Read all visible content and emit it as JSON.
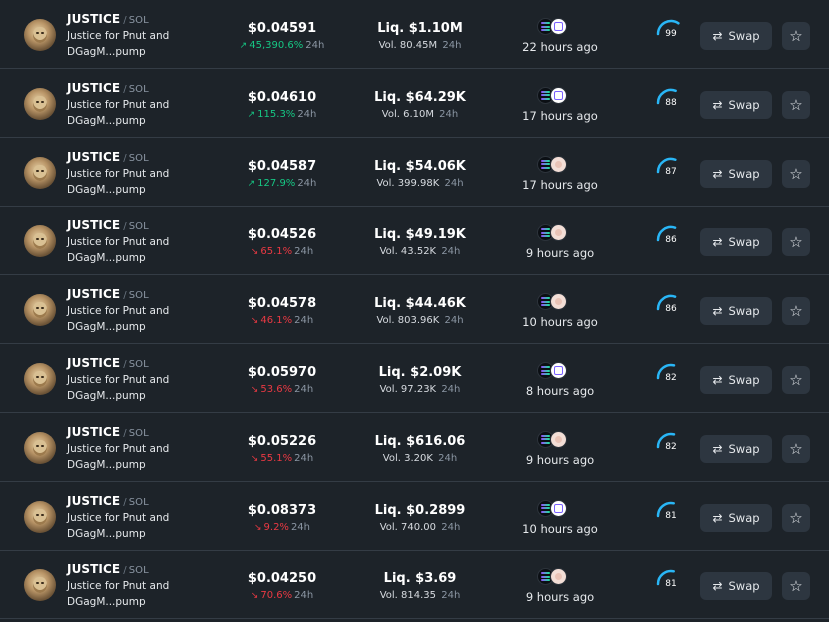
{
  "rows": [
    {
      "name": "JUSTICE",
      "chain": "SOL",
      "desc1": "Justice for Pnut and",
      "desc2": "DGagM...pump",
      "price": "$0.04591",
      "change": "45,390.6%",
      "dir": "up",
      "timeframe": "24h",
      "liq": "Liq. $1.10M",
      "vol": "Vol. 80.45M",
      "age": "22 hours ago",
      "dex": "raydium",
      "score": "99",
      "swap_label": "Swap"
    },
    {
      "name": "JUSTICE",
      "chain": "SOL",
      "desc1": "Justice for Pnut and",
      "desc2": "DGagM...pump",
      "price": "$0.04610",
      "change": "115.3%",
      "dir": "up",
      "timeframe": "24h",
      "liq": "Liq. $64.29K",
      "vol": "Vol. 6.10M",
      "age": "17 hours ago",
      "dex": "raydium",
      "score": "88",
      "swap_label": "Swap"
    },
    {
      "name": "JUSTICE",
      "chain": "SOL",
      "desc1": "Justice for Pnut and",
      "desc2": "DGagM...pump",
      "price": "$0.04587",
      "change": "127.9%",
      "dir": "up",
      "timeframe": "24h",
      "liq": "Liq. $54.06K",
      "vol": "Vol. 399.98K",
      "age": "17 hours ago",
      "dex": "pump",
      "score": "87",
      "swap_label": "Swap"
    },
    {
      "name": "JUSTICE",
      "chain": "SOL",
      "desc1": "Justice for Pnut and",
      "desc2": "DGagM...pump",
      "price": "$0.04526",
      "change": "65.1%",
      "dir": "down",
      "timeframe": "24h",
      "liq": "Liq. $49.19K",
      "vol": "Vol. 43.52K",
      "age": "9 hours ago",
      "dex": "pump",
      "score": "86",
      "swap_label": "Swap"
    },
    {
      "name": "JUSTICE",
      "chain": "SOL",
      "desc1": "Justice for Pnut and",
      "desc2": "DGagM...pump",
      "price": "$0.04578",
      "change": "46.1%",
      "dir": "down",
      "timeframe": "24h",
      "liq": "Liq. $44.46K",
      "vol": "Vol. 803.96K",
      "age": "10 hours ago",
      "dex": "pump",
      "score": "86",
      "swap_label": "Swap"
    },
    {
      "name": "JUSTICE",
      "chain": "SOL",
      "desc1": "Justice for Pnut and",
      "desc2": "DGagM...pump",
      "price": "$0.05970",
      "change": "53.6%",
      "dir": "down",
      "timeframe": "24h",
      "liq": "Liq. $2.09K",
      "vol": "Vol. 97.23K",
      "age": "8 hours ago",
      "dex": "raydium",
      "score": "82",
      "swap_label": "Swap"
    },
    {
      "name": "JUSTICE",
      "chain": "SOL",
      "desc1": "Justice for Pnut and",
      "desc2": "DGagM...pump",
      "price": "$0.05226",
      "change": "55.1%",
      "dir": "down",
      "timeframe": "24h",
      "liq": "Liq. $616.06",
      "vol": "Vol. 3.20K",
      "age": "9 hours ago",
      "dex": "pump",
      "score": "82",
      "swap_label": "Swap"
    },
    {
      "name": "JUSTICE",
      "chain": "SOL",
      "desc1": "Justice for Pnut and",
      "desc2": "DGagM...pump",
      "price": "$0.08373",
      "change": "9.2%",
      "dir": "down",
      "timeframe": "24h",
      "liq": "Liq. $0.2899",
      "vol": "Vol. 740.00",
      "age": "10 hours ago",
      "dex": "raydium",
      "score": "81",
      "swap_label": "Swap"
    },
    {
      "name": "JUSTICE",
      "chain": "SOL",
      "desc1": "Justice for Pnut and",
      "desc2": "DGagM...pump",
      "price": "$0.04250",
      "change": "70.6%",
      "dir": "down",
      "timeframe": "24h",
      "liq": "Liq. $3.69",
      "vol": "Vol. 814.35",
      "age": "9 hours ago",
      "dex": "pump",
      "score": "81",
      "swap_label": "Swap"
    }
  ],
  "colors": {
    "up": "#16c784",
    "down": "#ea3943",
    "score_arc": "#29b6f6",
    "background": "#1d2329",
    "button": "#2d3640"
  },
  "icons": {
    "chain": "solana-icon",
    "dex_raydium": "raydium-icon",
    "dex_pump": "pumpfun-icon",
    "swap": "swap-arrows-icon",
    "favorite": "star-icon"
  }
}
